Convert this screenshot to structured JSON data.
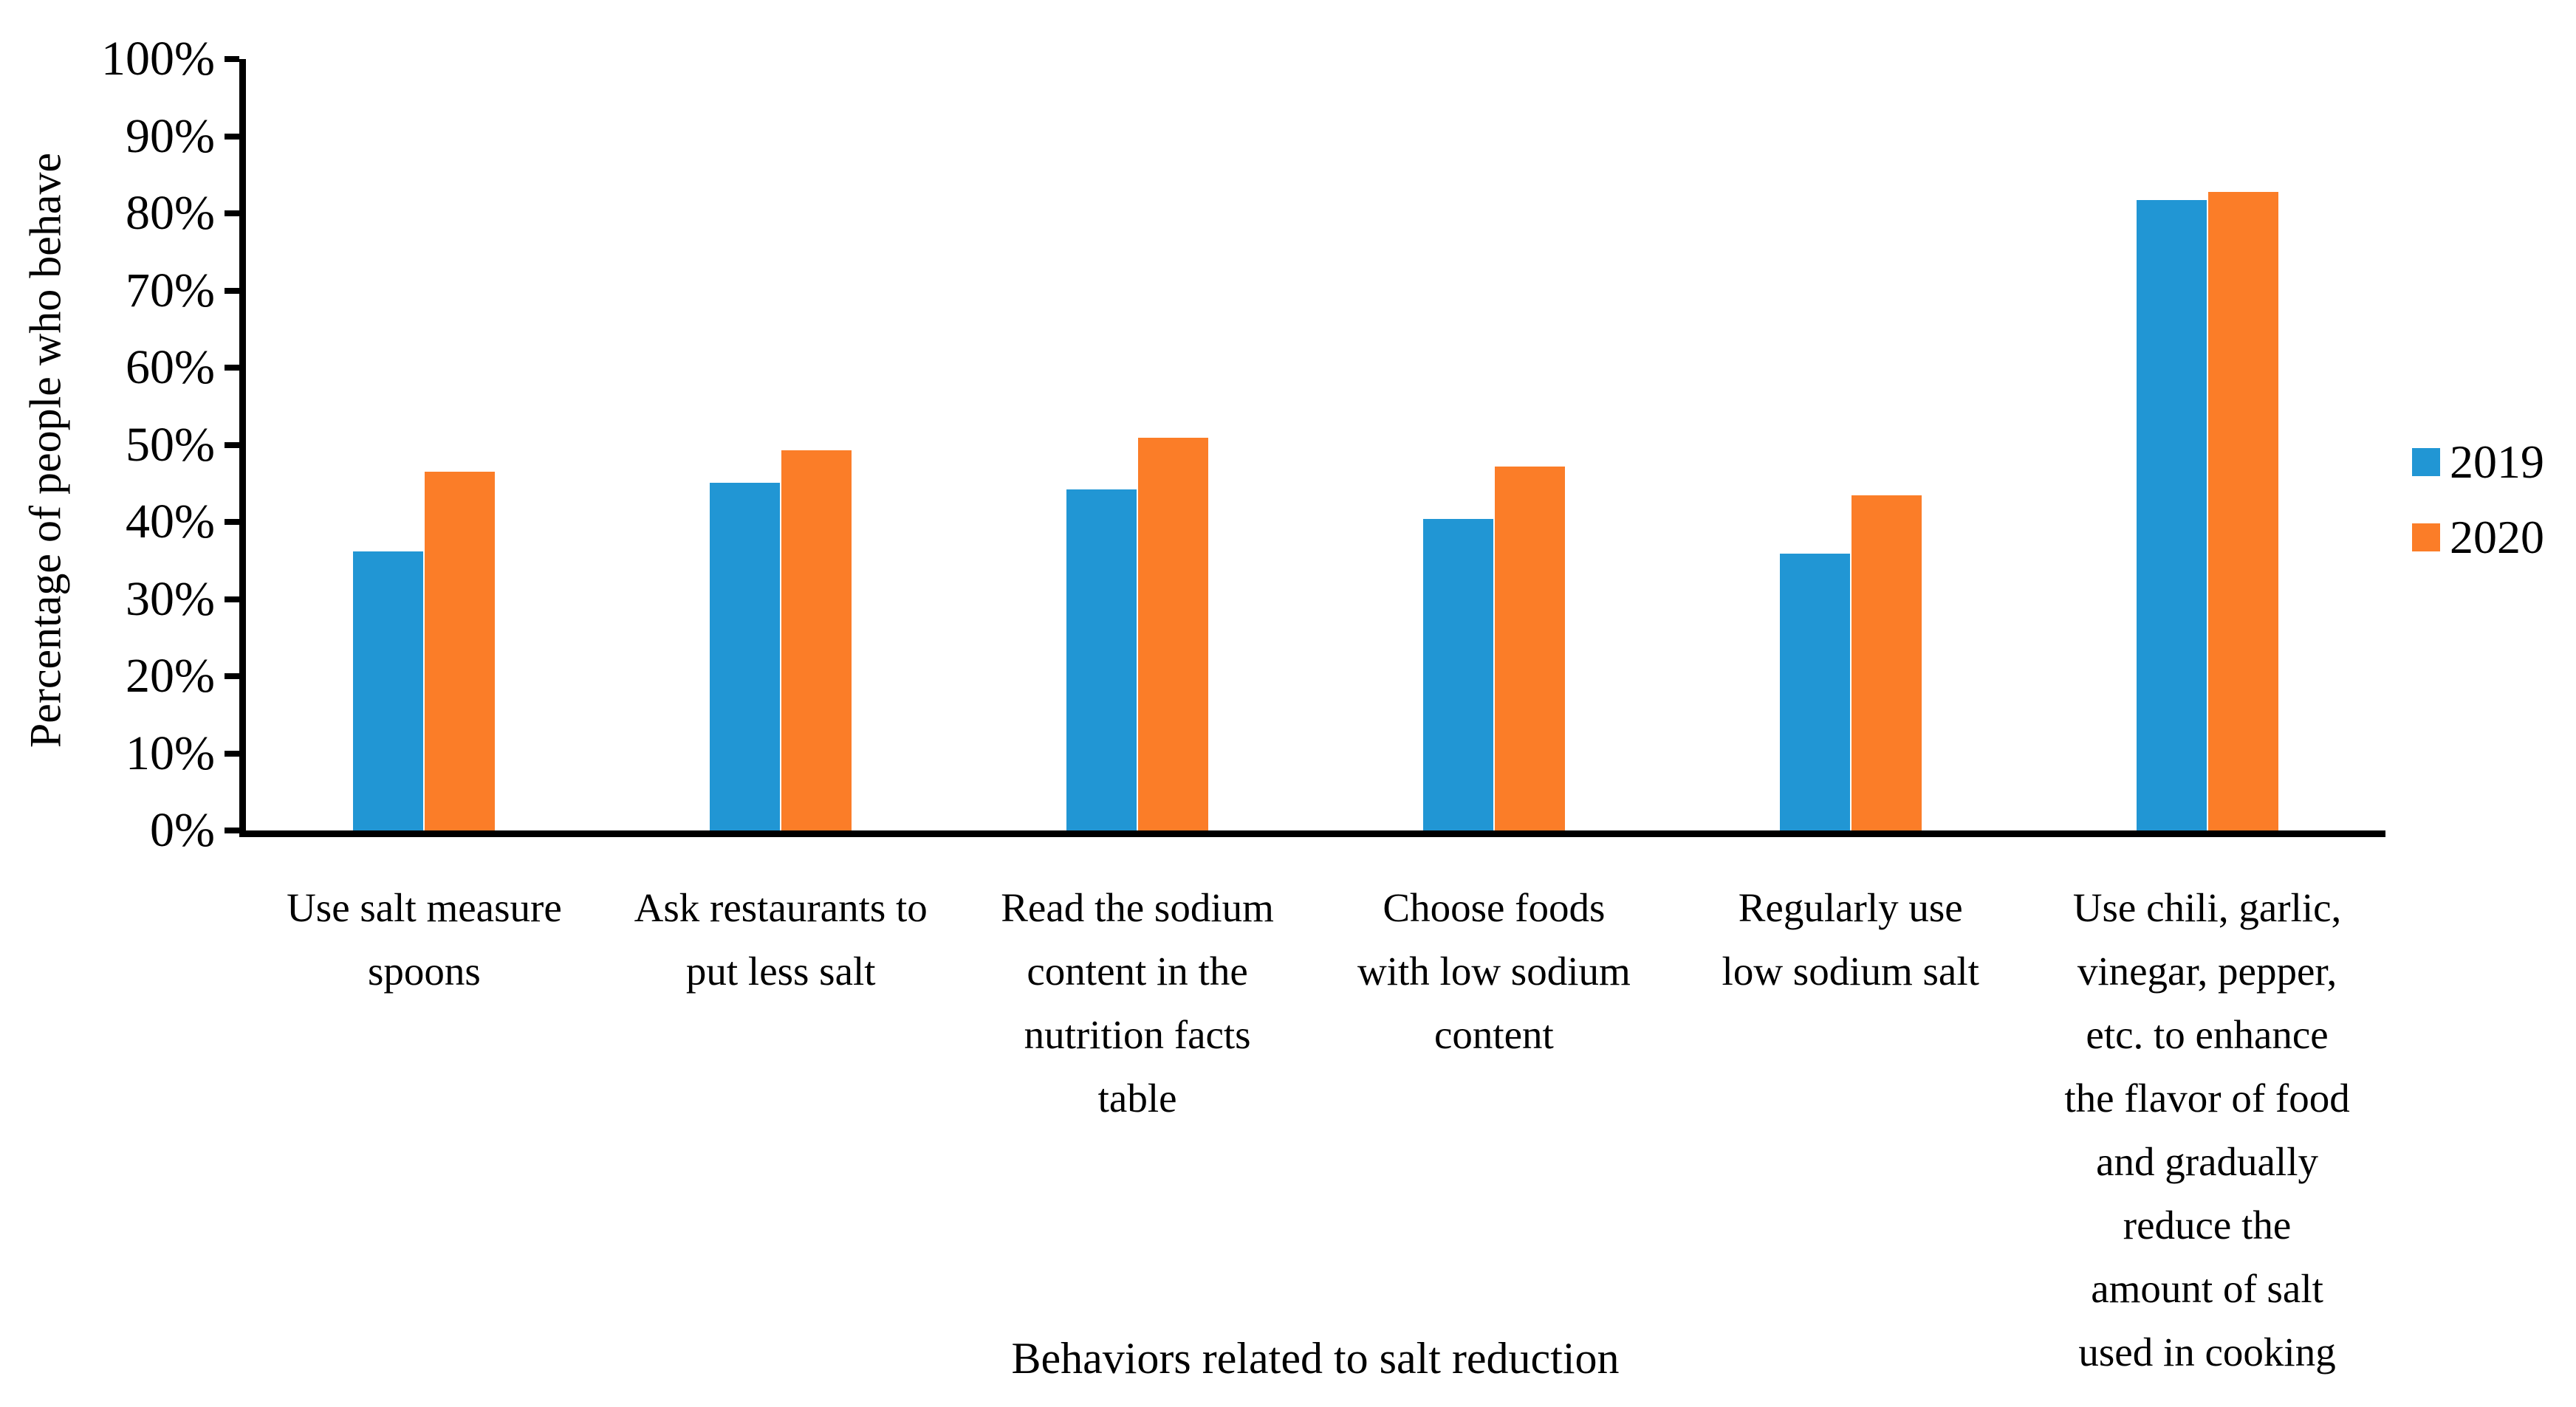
{
  "chart_data": {
    "type": "bar",
    "title": "",
    "xlabel": "Behaviors related to salt reduction",
    "ylabel": "Percentage of people who behave",
    "categories": [
      "Use salt measure\nspoons",
      "Ask restaurants to\nput less salt",
      "Read the sodium\ncontent in the\nnutrition facts\ntable",
      "Choose foods\nwith low sodium\ncontent",
      "Regularly use\nlow sodium salt",
      "Use chili, garlic,\nvinegar, pepper,\netc. to enhance\nthe flavor of food\nand gradually\nreduce the\namount of salt\nused in cooking"
    ],
    "series": [
      {
        "name": "2019",
        "color": "#2196D4",
        "values": [
          36.2,
          45.1,
          44.2,
          40.4,
          35.9,
          81.7
        ]
      },
      {
        "name": "2020",
        "color": "#FB7D28",
        "values": [
          46.5,
          49.3,
          50.9,
          47.2,
          43.4,
          82.8
        ]
      }
    ],
    "y_axis": {
      "min": 0,
      "max": 100,
      "step": 10,
      "tick_labels": [
        "0%",
        "10%",
        "20%",
        "30%",
        "40%",
        "50%",
        "60%",
        "70%",
        "80%",
        "90%",
        "100%"
      ]
    },
    "legend_position": "right",
    "grid": false,
    "axis_color": "#000000",
    "background_color": "#FFFFFF"
  }
}
